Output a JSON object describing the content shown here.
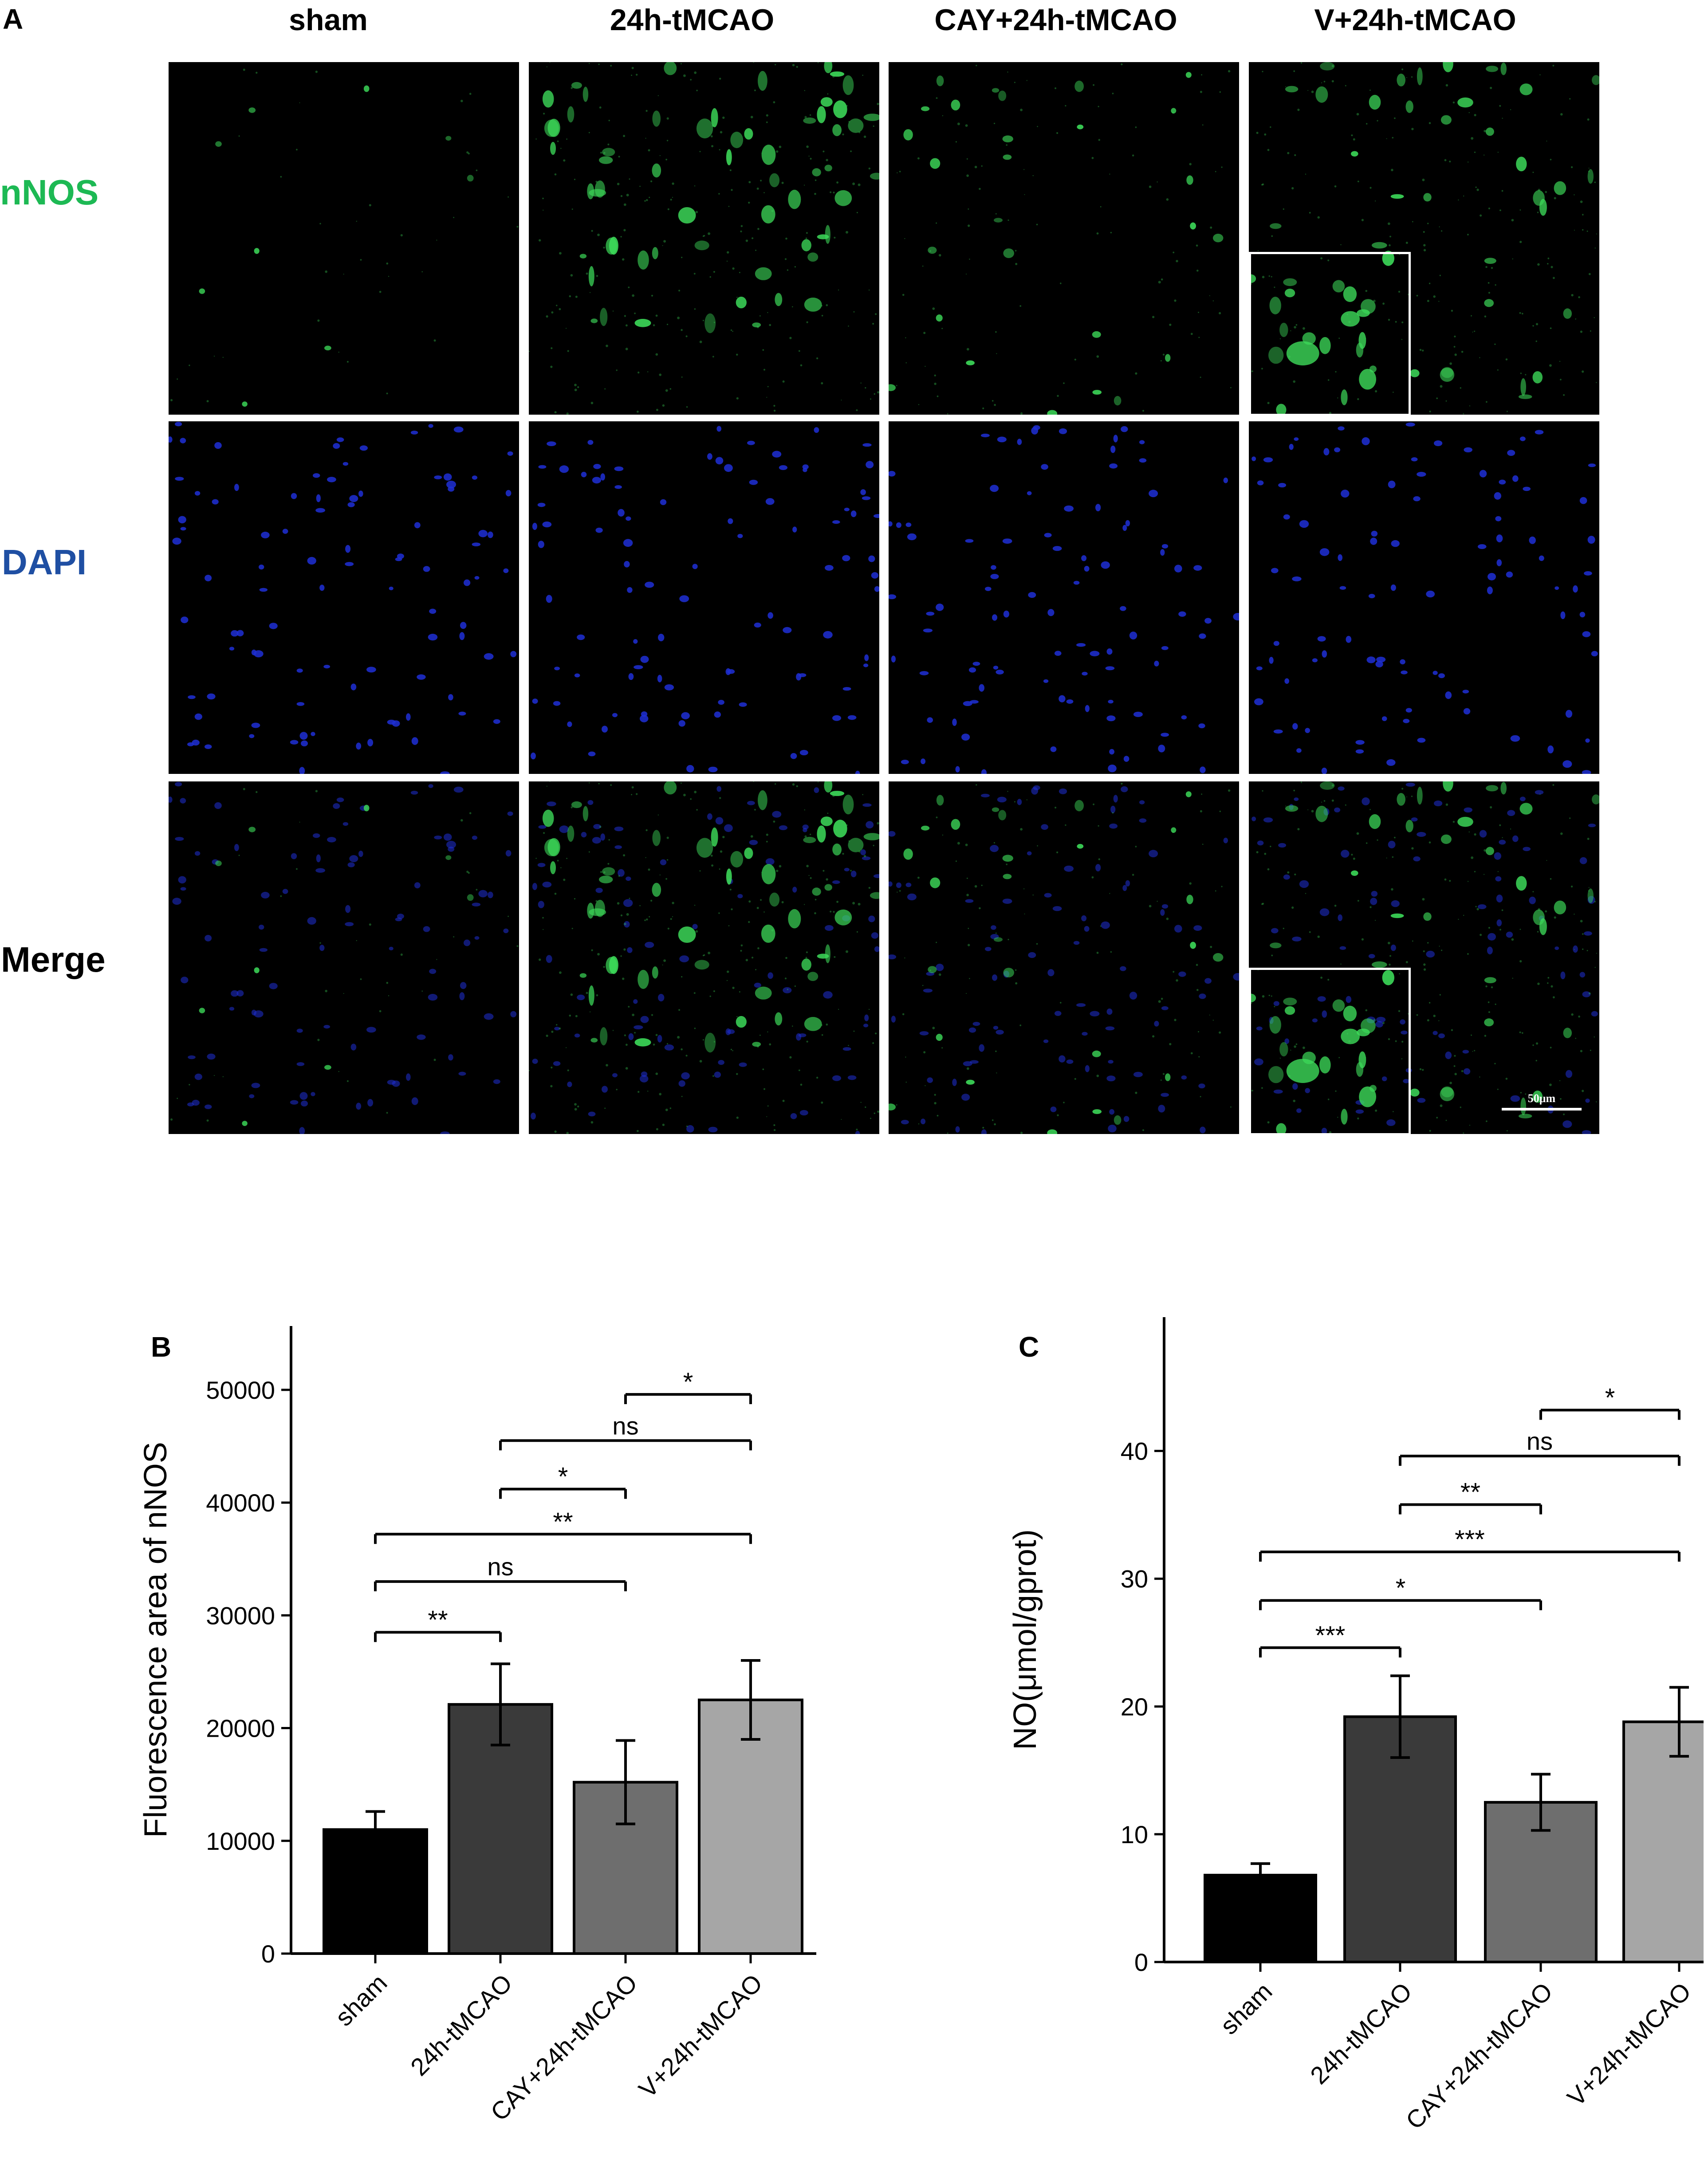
{
  "panel_labels": {
    "A": "A",
    "B": "B",
    "C": "C"
  },
  "micrograph_grid": {
    "columns": [
      "sham",
      "24h-tMCAO",
      "CAY+24h-tMCAO",
      "V+24h-tMCAO"
    ],
    "rows": [
      {
        "label": "nNOS",
        "color": "#1db954"
      },
      {
        "label": "DAPI",
        "color": "#1f4fa3"
      },
      {
        "label": "Merge",
        "color": "#000000"
      }
    ],
    "scale_bar": "50μm"
  },
  "colors": {
    "bar_fills": [
      "#000000",
      "#3a3a3a",
      "#6e6e6e",
      "#a6a6a6"
    ],
    "nnos_green": "#3ddc5a",
    "dapi_blue": "#1f2fd6"
  },
  "chart_data": [
    {
      "type": "bar",
      "panel": "B",
      "categories": [
        "sham",
        "24h-tMCAO",
        "CAY+24h-tMCAO",
        "V+24h-tMCAO"
      ],
      "values": [
        11000,
        22100,
        15200,
        22500
      ],
      "errors": [
        1600,
        3600,
        3700,
        3500
      ],
      "ylabel": "Fluorescence area of nNOS",
      "ylim": [
        0,
        52000
      ],
      "yticks": [
        0,
        10000,
        20000,
        30000,
        40000,
        50000
      ],
      "ytick_labels": [
        "0",
        "10000",
        "20000",
        "30000",
        "40000",
        "50000"
      ],
      "comparisons": [
        {
          "from": 0,
          "to": 1,
          "label": "**",
          "y": 28500
        },
        {
          "from": 0,
          "to": 2,
          "label": "ns",
          "y": 33000
        },
        {
          "from": 0,
          "to": 3,
          "label": "**",
          "y": 37200
        },
        {
          "from": 1,
          "to": 2,
          "label": "*",
          "y": 41200
        },
        {
          "from": 1,
          "to": 3,
          "label": "ns",
          "y": 45500
        },
        {
          "from": 2,
          "to": 3,
          "label": "*",
          "y": 49600
        }
      ]
    },
    {
      "type": "bar",
      "panel": "C",
      "categories": [
        "sham",
        "24h-tMCAO",
        "CAY+24h-tMCAO",
        "V+24h-tMCAO"
      ],
      "values": [
        6.8,
        19.2,
        12.5,
        18.8
      ],
      "errors": [
        0.9,
        3.2,
        2.2,
        2.7
      ],
      "ylabel": "NO(μmol/gprot)",
      "ylim": [
        0,
        45
      ],
      "yticks": [
        0,
        10,
        20,
        30,
        40
      ],
      "ytick_labels": [
        "0",
        "10",
        "20",
        "30",
        "40"
      ],
      "comparisons": [
        {
          "from": 0,
          "to": 1,
          "label": "***",
          "y": 24.6
        },
        {
          "from": 0,
          "to": 2,
          "label": "*",
          "y": 28.3
        },
        {
          "from": 0,
          "to": 3,
          "label": "***",
          "y": 32.1
        },
        {
          "from": 1,
          "to": 2,
          "label": "**",
          "y": 35.8
        },
        {
          "from": 1,
          "to": 3,
          "label": "ns",
          "y": 39.6
        },
        {
          "from": 2,
          "to": 3,
          "label": "*",
          "y": 43.2
        }
      ]
    }
  ]
}
